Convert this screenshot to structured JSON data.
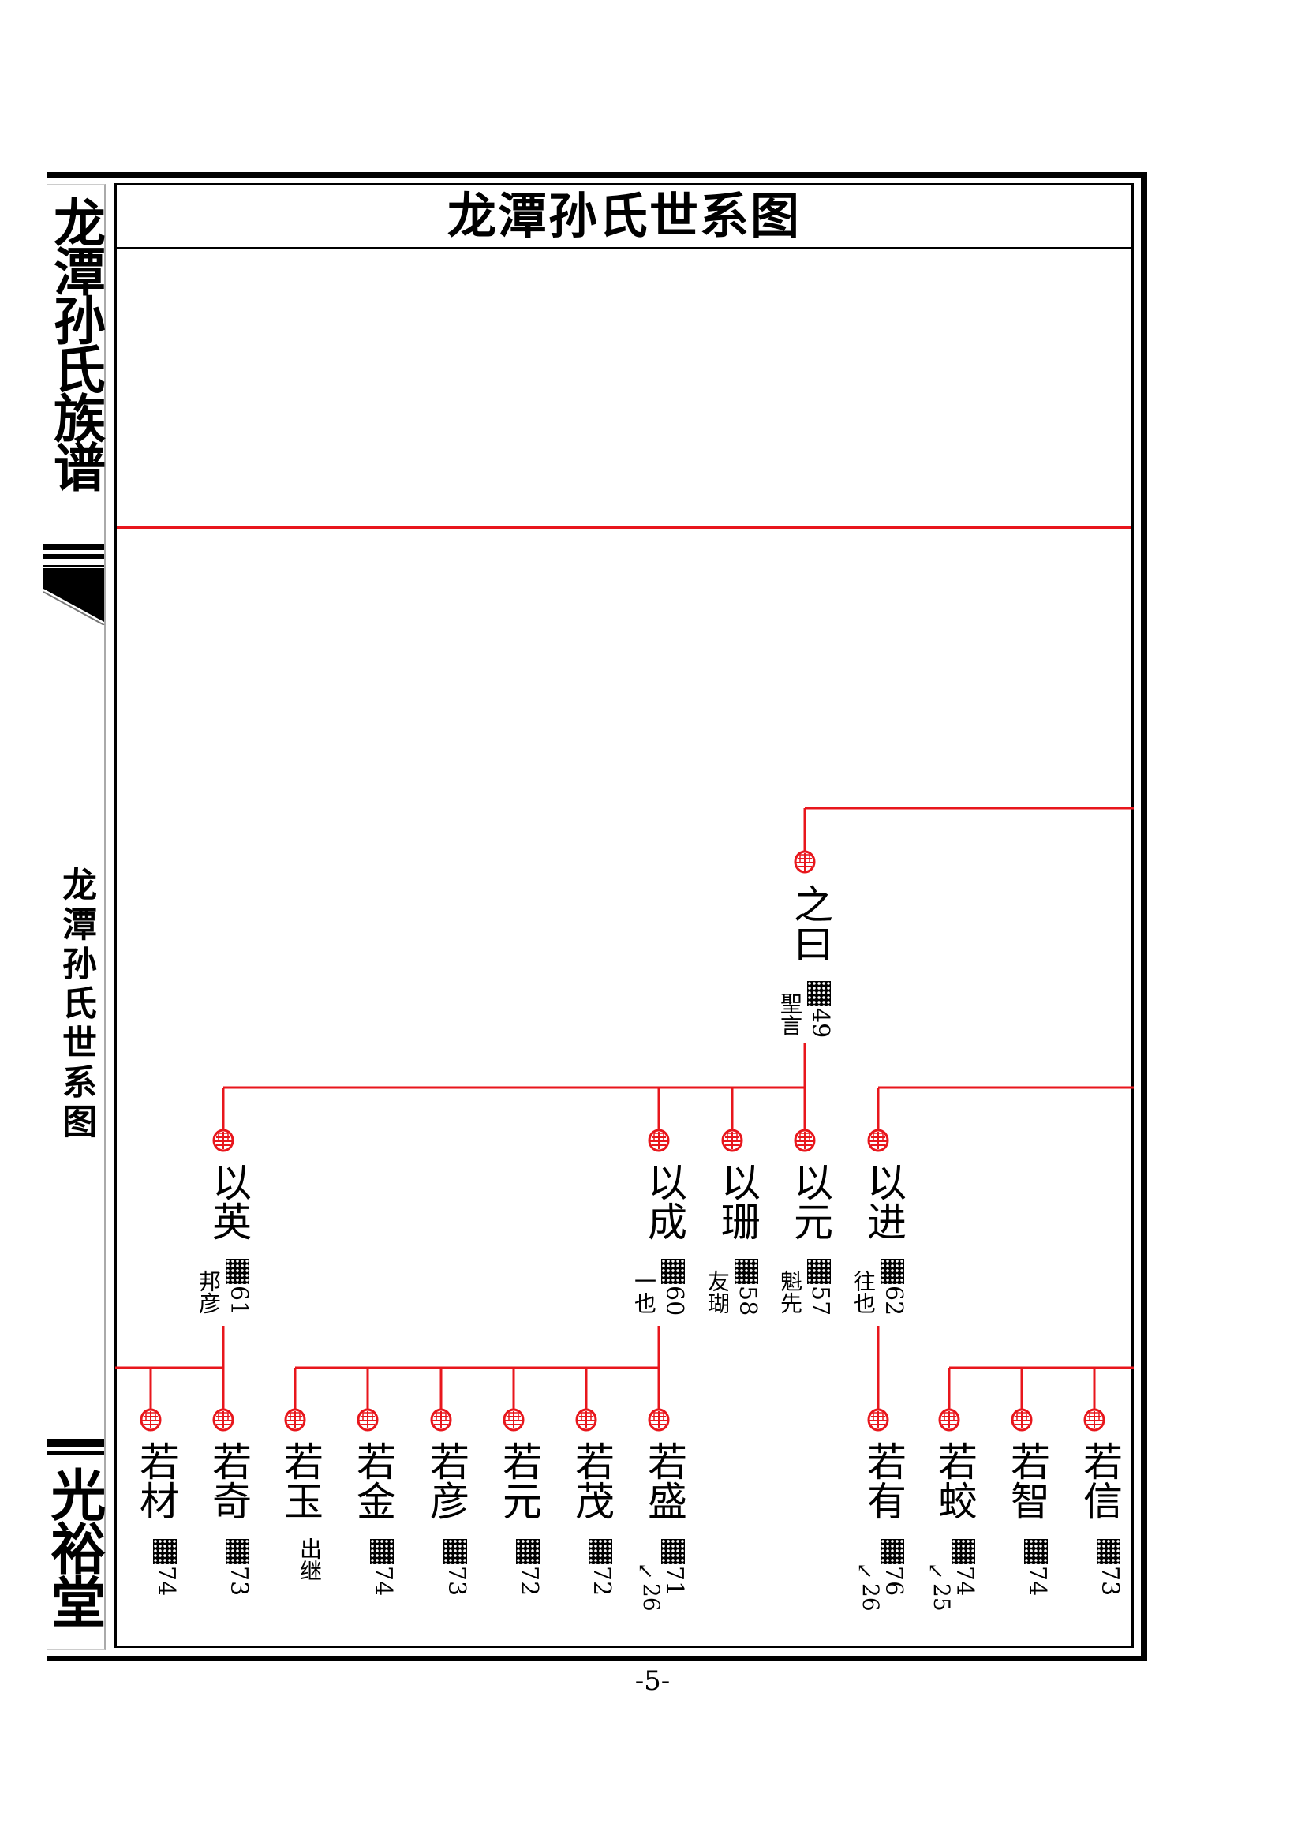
{
  "page": {
    "title": "龙潭孙氏世系图",
    "spine_title": "龙潭孙氏族谱",
    "spine_subtitle": "龙潭孙氏世系图",
    "spine_hall": "光裕堂",
    "page_number": "-5-"
  },
  "colors": {
    "line": "#e8161c",
    "seal": "#e8161c",
    "ink": "#000000"
  },
  "icons": {
    "seal": "red-seal-icon",
    "redacted": "checker-block",
    "ref_arrow": "↖"
  },
  "tree": {
    "gen1": [
      {
        "name": "之曰",
        "order": "49",
        "alias": "聖言"
      }
    ],
    "gen2": [
      {
        "name": "以英",
        "order": "61",
        "alias": "邦彦"
      },
      {
        "name": "以成",
        "order": "60",
        "alias": "一也"
      },
      {
        "name": "以珊",
        "order": "58",
        "alias": "友瑚"
      },
      {
        "name": "以元",
        "order": "57",
        "alias": "魁先"
      },
      {
        "name": "以进",
        "order": "62",
        "alias": "往也"
      }
    ],
    "gen3": [
      {
        "name": "若材",
        "order": "74"
      },
      {
        "name": "若奇",
        "order": "73"
      },
      {
        "name": "若玉",
        "note": "出继"
      },
      {
        "name": "若金",
        "order": "74"
      },
      {
        "name": "若彦",
        "order": "73"
      },
      {
        "name": "若元",
        "order": "72"
      },
      {
        "name": "若茂",
        "order": "72"
      },
      {
        "name": "若盛",
        "order": "71",
        "ref": "26"
      },
      {
        "name": "若有",
        "order": "76",
        "ref": "26"
      },
      {
        "name": "若蛟",
        "order": "74",
        "ref": "25"
      },
      {
        "name": "若智",
        "order": "74"
      },
      {
        "name": "若信",
        "order": "73"
      }
    ]
  }
}
